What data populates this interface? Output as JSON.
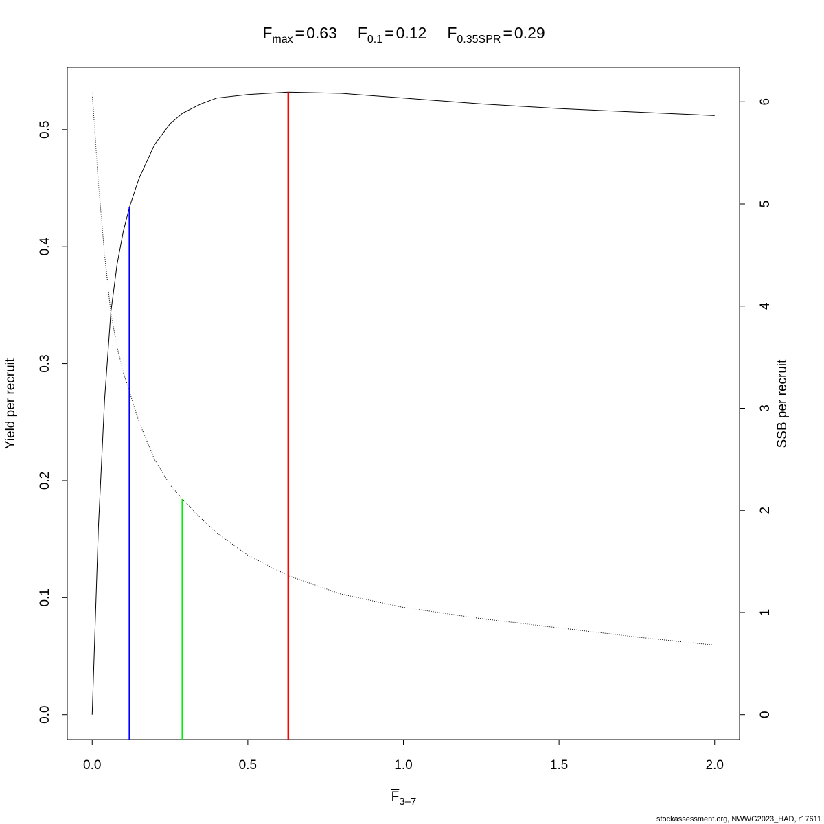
{
  "chart_data": {
    "type": "line",
    "reference_lines": [
      {
        "symbol": "F",
        "subscript": "max",
        "operator": "=",
        "x": 0.63,
        "y": 0.532,
        "axis": "y",
        "color": "#ff0000"
      },
      {
        "symbol": "F",
        "subscript": "0.1",
        "operator": "=",
        "x": 0.12,
        "y": 0.434,
        "axis": "y",
        "color": "#0000ff"
      },
      {
        "symbol": "F",
        "subscript": "0.35SPR",
        "operator": "=",
        "x": 0.29,
        "y": 2.11,
        "axis": "y2",
        "color": "#00ee00"
      }
    ],
    "x_label": {
      "symbol": "F",
      "subscript": "3–7"
    },
    "y_label": "Yield per recruit",
    "y2_label": "SSB per recruit",
    "footnote": "stockassessment.org, NWWG2023_HAD, r17611",
    "x": [
      0,
      0.02,
      0.04,
      0.06,
      0.08,
      0.1,
      0.12,
      0.15,
      0.2,
      0.25,
      0.29,
      0.35,
      0.4,
      0.5,
      0.63,
      0.8,
      1.0,
      1.25,
      1.5,
      1.75,
      2.0
    ],
    "series": [
      {
        "values": [
          0,
          0.16,
          0.27,
          0.344,
          0.385,
          0.413,
          0.434,
          0.458,
          0.487,
          0.505,
          0.514,
          0.522,
          0.527,
          0.53,
          0.532,
          0.531,
          0.527,
          0.522,
          0.518,
          0.515,
          0.512
        ],
        "color": "#000000",
        "axis": "y",
        "dash": "solid"
      },
      {
        "values": [
          6.09,
          5.2,
          4.5,
          3.93,
          3.6,
          3.35,
          3.16,
          2.87,
          2.5,
          2.25,
          2.11,
          1.92,
          1.78,
          1.56,
          1.36,
          1.18,
          1.05,
          0.94,
          0.85,
          0.76,
          0.68
        ],
        "color": "#000000",
        "axis": "y2",
        "dash": "dotted"
      }
    ],
    "xlim": [
      -0.08,
      2.08
    ],
    "xticks": [
      {
        "value": 0,
        "label": "0.0"
      },
      0.5,
      {
        "value": 1,
        "label": "1.0"
      },
      1.5,
      {
        "value": 2,
        "label": "2.0"
      }
    ],
    "ylim": [
      -0.0213,
      0.5533
    ],
    "yticks": [
      {
        "value": 0,
        "label": "0.0"
      },
      0.1,
      0.2,
      0.3,
      0.4,
      0.5
    ],
    "y2lim": [
      -0.244,
      6.338
    ],
    "y2ticks": [
      0,
      1,
      2,
      3,
      4,
      5,
      6
    ],
    "grid": false
  }
}
